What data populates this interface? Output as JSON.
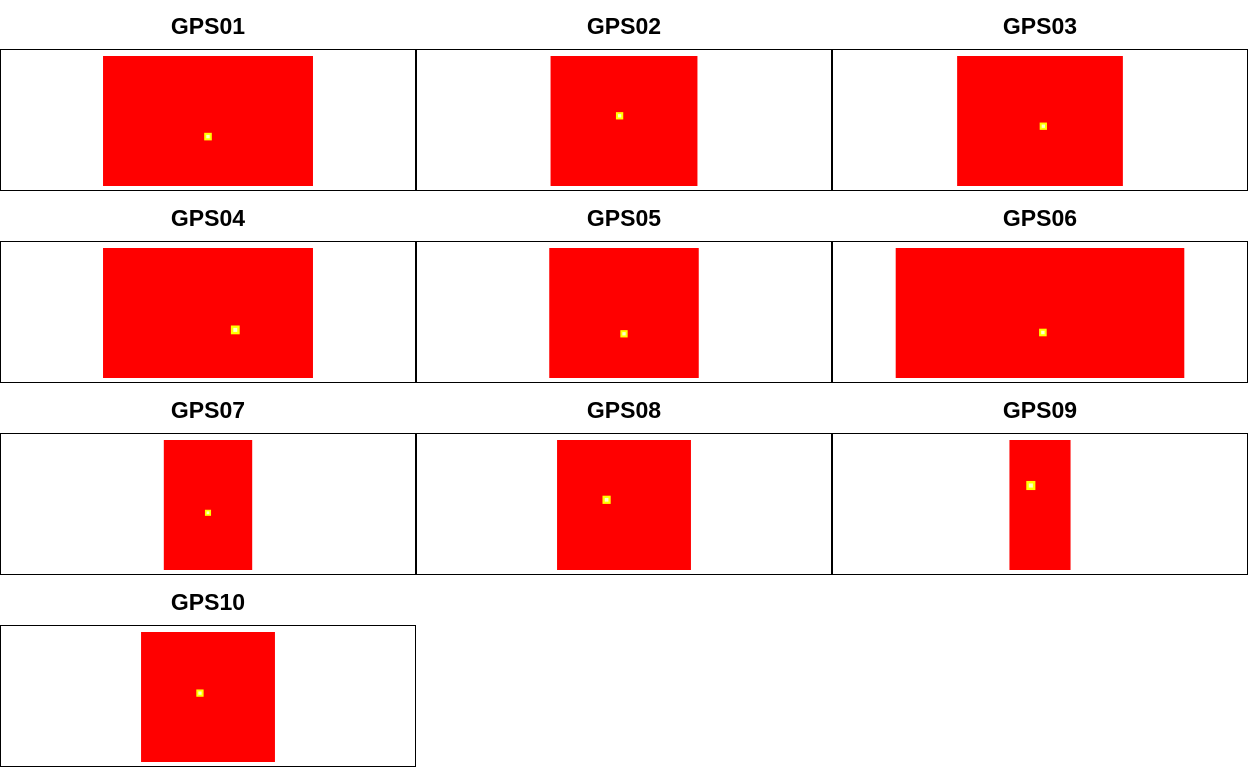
{
  "chart_data": [
    {
      "type": "heatmap",
      "title": "GPS01",
      "map_aspect": 1.615,
      "hotspot": [
        0.5,
        0.62
      ],
      "hotspot_level": 0.6
    },
    {
      "type": "heatmap",
      "title": "GPS02",
      "map_aspect": 1.13,
      "hotspot": [
        0.47,
        0.46
      ],
      "hotspot_level": 0.55
    },
    {
      "type": "heatmap",
      "title": "GPS03",
      "map_aspect": 1.275,
      "hotspot": [
        0.52,
        0.54
      ],
      "hotspot_level": 0.55
    },
    {
      "type": "heatmap",
      "title": "GPS04",
      "map_aspect": 1.615,
      "hotspot": [
        0.63,
        0.63
      ],
      "hotspot_level": 0.8
    },
    {
      "type": "heatmap",
      "title": "GPS05",
      "map_aspect": 1.15,
      "hotspot": [
        0.5,
        0.66
      ],
      "hotspot_level": 0.55
    },
    {
      "type": "heatmap",
      "title": "GPS06",
      "map_aspect": 2.22,
      "hotspot": [
        0.51,
        0.65
      ],
      "hotspot_level": 0.6
    },
    {
      "type": "heatmap",
      "title": "GPS07",
      "map_aspect": 0.68,
      "hotspot": [
        0.5,
        0.56
      ],
      "hotspot_level": 0.35
    },
    {
      "type": "heatmap",
      "title": "GPS08",
      "map_aspect": 1.03,
      "hotspot": [
        0.37,
        0.46
      ],
      "hotspot_level": 0.7
    },
    {
      "type": "heatmap",
      "title": "GPS09",
      "map_aspect": 0.47,
      "hotspot": [
        0.35,
        0.35
      ],
      "hotspot_level": 0.85
    },
    {
      "type": "heatmap",
      "title": "GPS10",
      "map_aspect": 1.03,
      "hotspot": [
        0.44,
        0.47
      ],
      "hotspot_level": 0.55
    }
  ],
  "colors": {
    "background": "#ff0000",
    "hot": "#ffff00",
    "peak": "#ffffcc",
    "border": "#000000"
  }
}
